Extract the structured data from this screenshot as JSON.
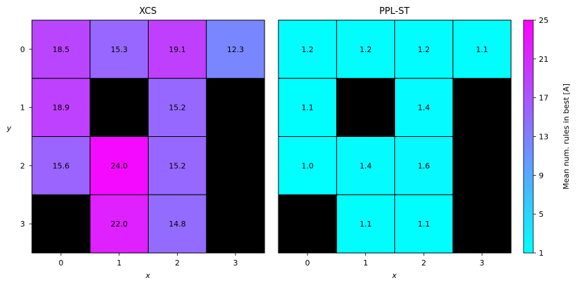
{
  "chart_data": [
    {
      "type": "heatmap",
      "title": "XCS",
      "xlabel": "x",
      "ylabel": "y",
      "x_ticks": [
        "0",
        "1",
        "2",
        "3"
      ],
      "y_ticks": [
        "0",
        "1",
        "2",
        "3"
      ],
      "values": [
        [
          18.5,
          15.3,
          19.1,
          12.3
        ],
        [
          18.9,
          null,
          15.2,
          null
        ],
        [
          15.6,
          24.0,
          15.2,
          null
        ],
        [
          null,
          22.0,
          14.8,
          null
        ]
      ],
      "labels": [
        [
          "18.5",
          "15.3",
          "19.1",
          "12.3"
        ],
        [
          "18.9",
          "",
          "15.2",
          ""
        ],
        [
          "15.6",
          "24.0",
          "15.2",
          ""
        ],
        [
          "",
          "22.0",
          "14.8",
          ""
        ]
      ],
      "missing_color": "#000000"
    },
    {
      "type": "heatmap",
      "title": "PPL-ST",
      "xlabel": "x",
      "ylabel": "",
      "x_ticks": [
        "0",
        "1",
        "2",
        "3"
      ],
      "y_ticks": [],
      "values": [
        [
          1.2,
          1.2,
          1.2,
          1.1
        ],
        [
          1.1,
          null,
          1.4,
          null
        ],
        [
          1.0,
          1.4,
          1.6,
          null
        ],
        [
          null,
          1.1,
          1.1,
          null
        ]
      ],
      "labels": [
        [
          "1.2",
          "1.2",
          "1.2",
          "1.1"
        ],
        [
          "1.1",
          "",
          "1.4",
          ""
        ],
        [
          "1.0",
          "1.4",
          "1.6",
          ""
        ],
        [
          "",
          "1.1",
          "1.1",
          ""
        ]
      ],
      "missing_color": "#000000"
    }
  ],
  "colorbar": {
    "label": "Mean num. rules in best [A]",
    "colormap": "cool",
    "min": 1,
    "max": 25,
    "ticks": [
      "25",
      "21",
      "17",
      "13",
      "9",
      "5",
      "1"
    ],
    "tick_values": [
      25,
      21,
      17,
      13,
      9,
      5,
      1
    ],
    "low_color": "#00ffff",
    "high_color": "#ff00ff"
  }
}
